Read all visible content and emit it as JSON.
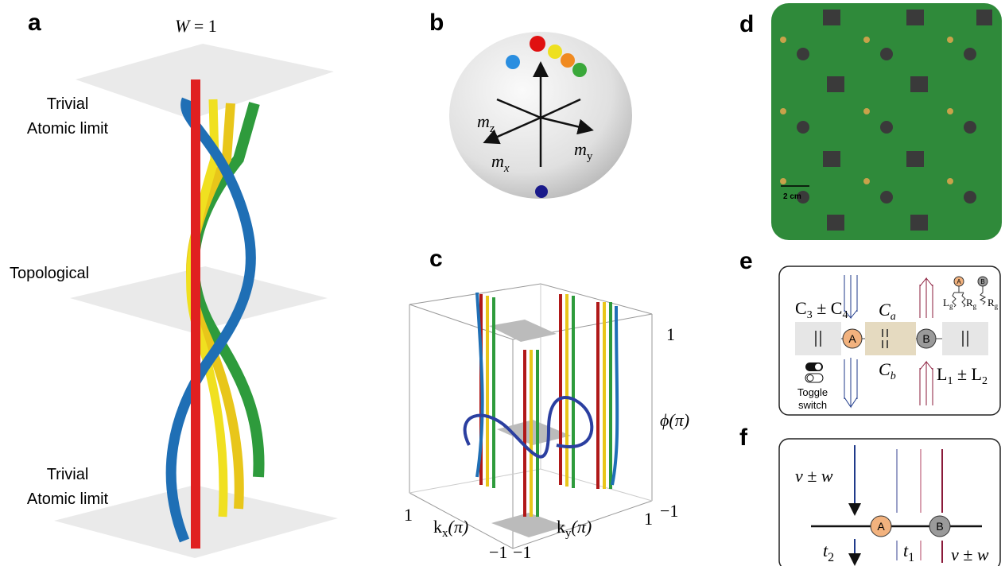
{
  "panels": {
    "a": {
      "label": "a",
      "title": [
        "W",
        " = 1"
      ],
      "regions": [
        [
          "Trivial",
          "Atomic limit"
        ],
        [
          "Topological"
        ],
        [
          "Trivial",
          "Atomic limit"
        ]
      ]
    },
    "b": {
      "label": "b",
      "axes": [
        [
          "m",
          "z"
        ],
        [
          "m",
          "x"
        ],
        [
          "m",
          "y"
        ]
      ]
    },
    "c": {
      "label": "c",
      "phi": {
        "label": "ϕ(π)",
        "ticks": [
          "1",
          "−1"
        ]
      },
      "kx": {
        "label": [
          "k",
          "x",
          "(π)"
        ],
        "ticks": [
          "1",
          "−1"
        ]
      },
      "ky": {
        "label": [
          "k",
          "y",
          "(π)"
        ],
        "ticks": [
          "−1",
          "1"
        ]
      }
    },
    "d": {
      "label": "d",
      "scale": "2 cm"
    },
    "e": {
      "label": "e",
      "c34": [
        "C",
        "3",
        " ± C",
        "4"
      ],
      "ca": [
        "C",
        "a"
      ],
      "cb": [
        "C",
        "b"
      ],
      "nodeA": "A",
      "nodeB": "B",
      "l12": [
        "L",
        "1",
        " ± L",
        "2"
      ],
      "toggle": [
        "Toggle",
        "switch"
      ],
      "inset": {
        "nodeA": "A",
        "nodeB": "B",
        "lg": [
          "L",
          "g"
        ],
        "rg1": [
          "R",
          "g"
        ],
        "rg2": [
          "R",
          "g"
        ]
      }
    },
    "f": {
      "label": "f",
      "vw1": "v ± w",
      "vw2": "v ± w",
      "nodeA": "A",
      "nodeB": "B",
      "t2": [
        "t",
        "2"
      ],
      "t1": [
        "t",
        "1"
      ]
    }
  }
}
